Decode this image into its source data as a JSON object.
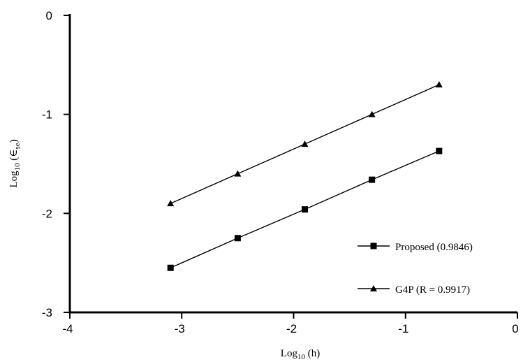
{
  "chart_data": {
    "type": "line",
    "title": "",
    "xlabel": {
      "base": "Log",
      "sub": "10",
      "rest": " (h)"
    },
    "ylabel": {
      "base": "Log",
      "sub": "10",
      "rest": " (∈",
      "sub2": "se",
      "end": ")"
    },
    "xlim": [
      -4,
      0
    ],
    "ylim": [
      -3,
      0
    ],
    "xticks": [
      -4,
      -3,
      -2,
      -1,
      0
    ],
    "yticks": [
      0,
      -1,
      -2,
      -3
    ],
    "xtick_labels": [
      "-4",
      "-3",
      "-2",
      "-1",
      "0"
    ],
    "ytick_labels": [
      "0",
      "-1",
      "-2",
      "-3"
    ],
    "grid": false,
    "legend_position": "bottom-right",
    "series": [
      {
        "name": "Proposed (0.9846)",
        "marker": "square",
        "color": "#000000",
        "x": [
          -3.1,
          -2.5,
          -1.9,
          -1.3,
          -0.7
        ],
        "y": [
          -2.55,
          -2.25,
          -1.96,
          -1.66,
          -1.37
        ]
      },
      {
        "name": "G4P (R = 0.9917)",
        "marker": "triangle",
        "color": "#000000",
        "x": [
          -3.1,
          -2.5,
          -1.9,
          -1.3,
          -0.7
        ],
        "y": [
          -1.9,
          -1.6,
          -1.3,
          -1.0,
          -0.7
        ]
      }
    ]
  }
}
